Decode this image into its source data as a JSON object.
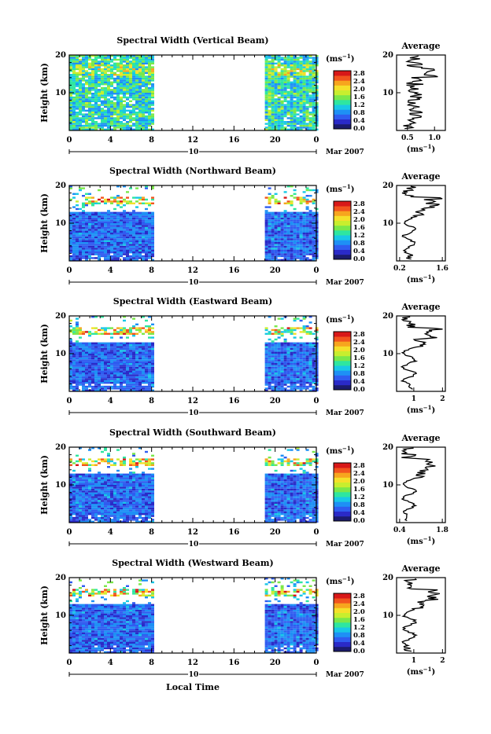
{
  "chart_data": [
    {
      "type": "heatmap",
      "title": "Spectral Width (Vertical Beam)",
      "ylabel": "Height (km)",
      "yticks": [
        "20",
        "10"
      ],
      "xticks": [
        "0",
        "4",
        "8",
        "12",
        "16",
        "20",
        "0"
      ],
      "date_marker": "10",
      "date_label": "Mar 2007",
      "colorbar": {
        "unit": "(ms⁻¹)",
        "ticks": [
          "2.8",
          "2.4",
          "2.0",
          "1.6",
          "1.2",
          "0.8",
          "0.4",
          "0.0"
        ]
      },
      "data_hours": [
        [
          0,
          8
        ],
        [
          19,
          24
        ]
      ],
      "average_profile": {
        "title": "Average",
        "xlabel": "(ms⁻¹)",
        "xticks": [
          "0.5",
          "1.0"
        ],
        "yticks": [
          "20",
          "10"
        ]
      }
    },
    {
      "type": "heatmap",
      "title": "Spectral Width (Northward Beam)",
      "ylabel": "Height (km)",
      "yticks": [
        "20",
        "10"
      ],
      "xticks": [
        "0",
        "4",
        "8",
        "12",
        "16",
        "20",
        "0"
      ],
      "date_marker": "10",
      "date_label": "Mar 2007",
      "colorbar": {
        "unit": "(ms⁻¹)",
        "ticks": [
          "2.8",
          "2.4",
          "2.0",
          "1.6",
          "1.2",
          "0.8",
          "0.4",
          "0.0"
        ]
      },
      "data_hours": [
        [
          0,
          8
        ],
        [
          19,
          24
        ]
      ],
      "average_profile": {
        "title": "Average",
        "xlabel": "(ms⁻¹)",
        "xticks": [
          "0.2",
          "1.6"
        ],
        "yticks": [
          "20",
          "10"
        ]
      }
    },
    {
      "type": "heatmap",
      "title": "Spectral Width (Eastward Beam)",
      "ylabel": "Height (km)",
      "yticks": [
        "20",
        "10"
      ],
      "xticks": [
        "0",
        "4",
        "8",
        "12",
        "16",
        "20",
        "0"
      ],
      "date_marker": "10",
      "date_label": "Mar 2007",
      "colorbar": {
        "unit": "(ms⁻¹)",
        "ticks": [
          "2.8",
          "2.4",
          "2.0",
          "1.6",
          "1.2",
          "0.8",
          "0.4",
          "0.0"
        ]
      },
      "data_hours": [
        [
          0,
          8
        ],
        [
          19,
          24
        ]
      ],
      "average_profile": {
        "title": "Average",
        "xlabel": "(ms⁻¹)",
        "xticks": [
          "1",
          "2"
        ],
        "yticks": [
          "20",
          "10"
        ]
      }
    },
    {
      "type": "heatmap",
      "title": "Spectral Width (Southward Beam)",
      "ylabel": "Height (km)",
      "yticks": [
        "20",
        "10"
      ],
      "xticks": [
        "0",
        "4",
        "8",
        "12",
        "16",
        "20",
        "0"
      ],
      "date_marker": "10",
      "date_label": "Mar 2007",
      "colorbar": {
        "unit": "(ms⁻¹)",
        "ticks": [
          "2.8",
          "2.4",
          "2.0",
          "1.6",
          "1.2",
          "0.8",
          "0.4",
          "0.0"
        ]
      },
      "data_hours": [
        [
          0,
          8
        ],
        [
          19,
          24
        ]
      ],
      "average_profile": {
        "title": "Average",
        "xlabel": "(ms⁻¹)",
        "xticks": [
          "0.4",
          "1.8"
        ],
        "yticks": [
          "20",
          "10"
        ]
      }
    },
    {
      "type": "heatmap",
      "title": "Spectral Width (Westward Beam)",
      "ylabel": "Height (km)",
      "yticks": [
        "20",
        "10"
      ],
      "xticks": [
        "0",
        "4",
        "8",
        "12",
        "16",
        "20",
        "0"
      ],
      "date_marker": "10",
      "date_label": "Mar 2007",
      "xlabel": "Local Time",
      "colorbar": {
        "unit": "(ms⁻¹)",
        "ticks": [
          "2.8",
          "2.4",
          "2.0",
          "1.6",
          "1.2",
          "0.8",
          "0.4",
          "0.0"
        ]
      },
      "data_hours": [
        [
          0,
          8
        ],
        [
          19,
          24
        ]
      ],
      "average_profile": {
        "title": "Average",
        "xlabel": "(ms⁻¹)",
        "xticks": [
          "1",
          "2"
        ],
        "yticks": [
          "20",
          "10"
        ]
      }
    }
  ]
}
